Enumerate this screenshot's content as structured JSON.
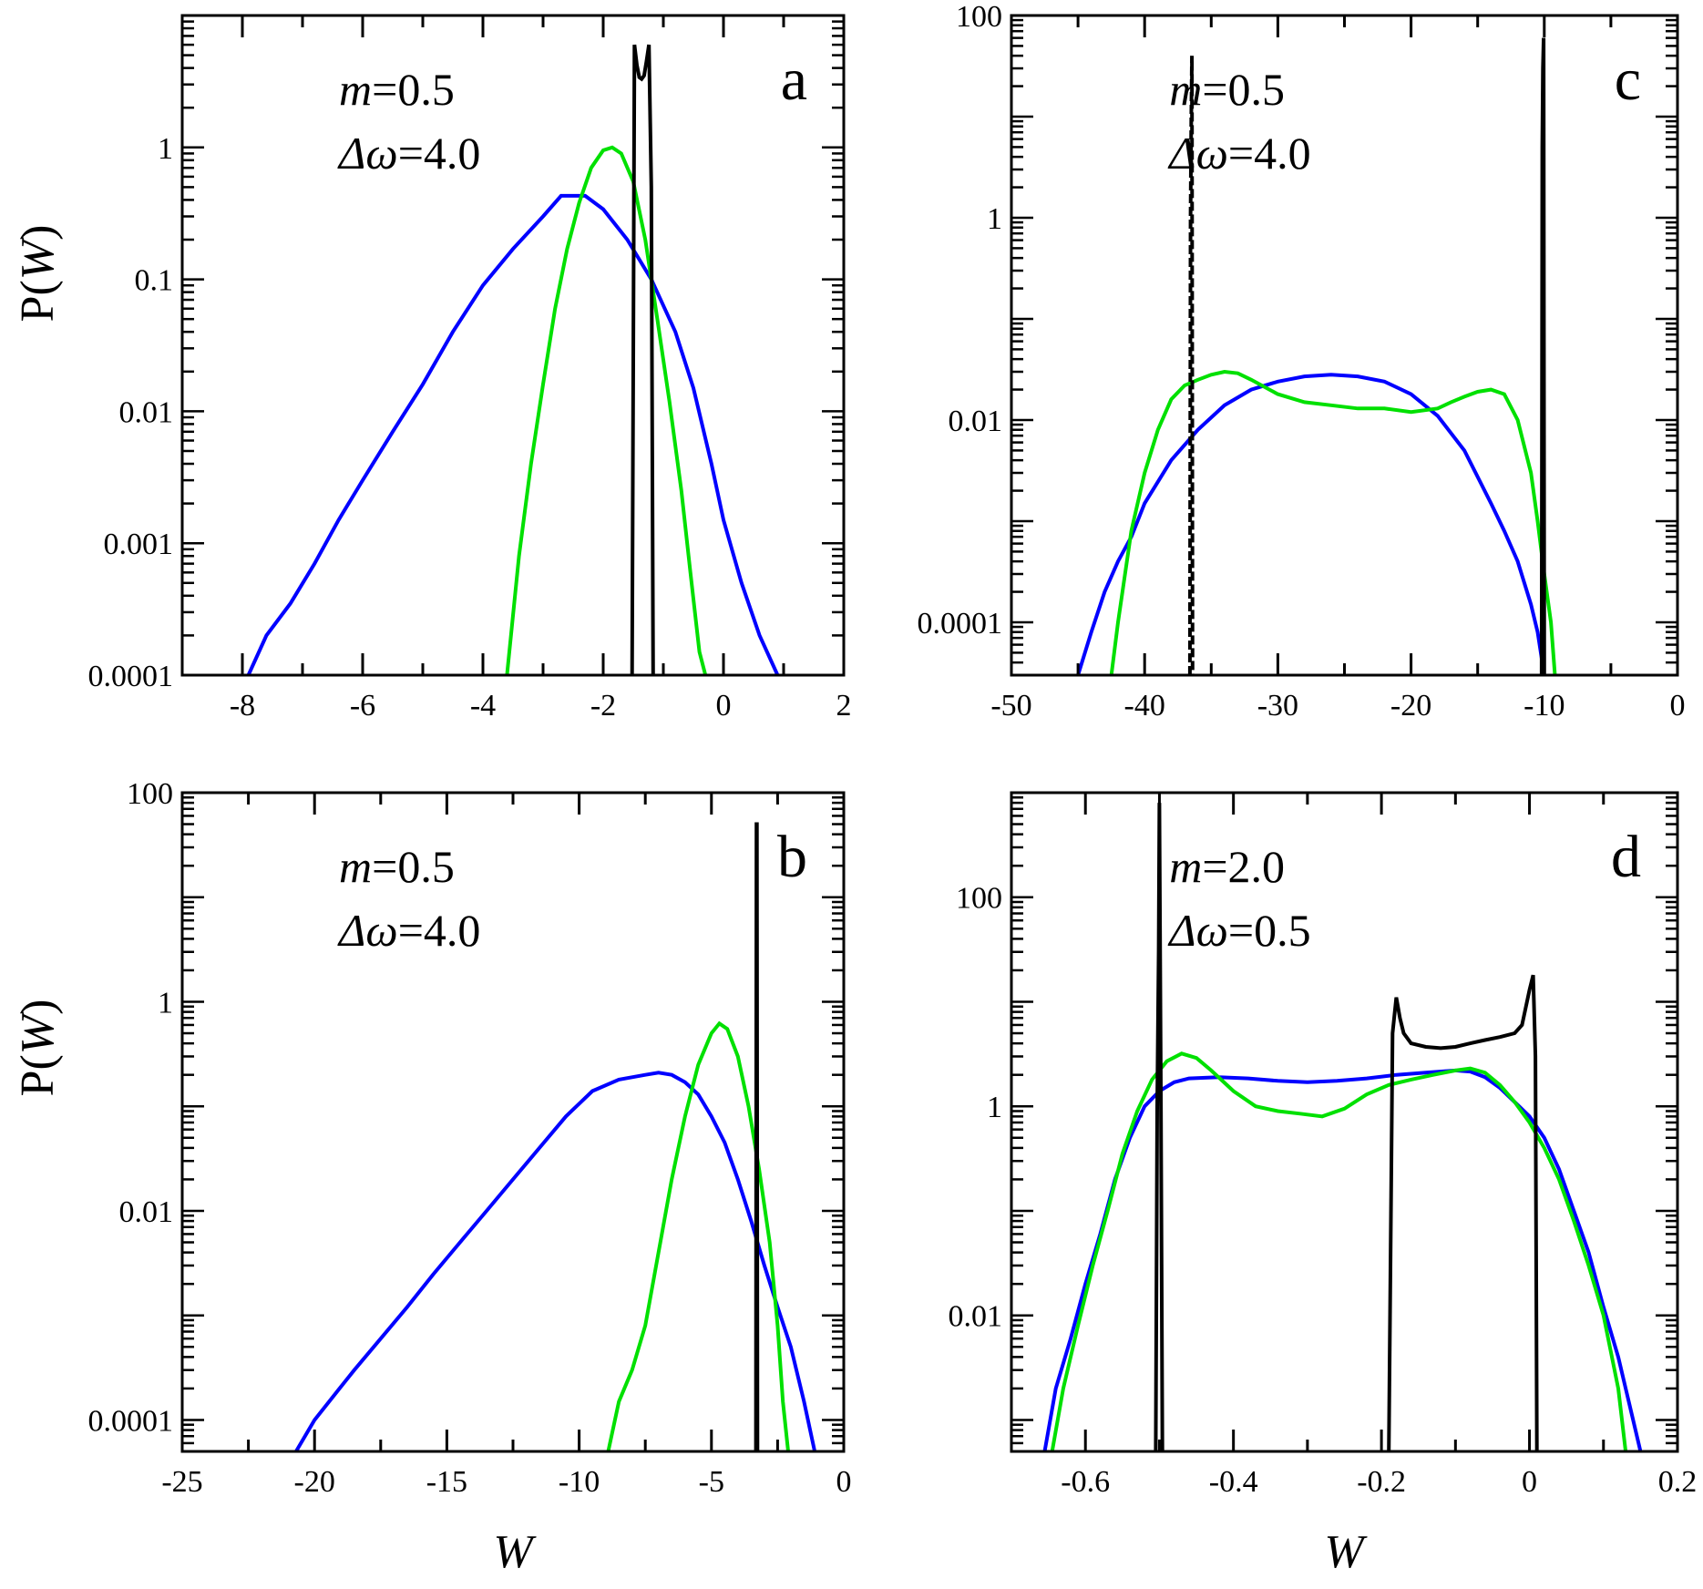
{
  "figure": {
    "ylabel_prefix": "P(",
    "ylabel_var": "W",
    "ylabel_suffix": ")",
    "xlabel": "W"
  },
  "colors": {
    "blue": "#0000ff",
    "green": "#00e000",
    "black": "#000000"
  },
  "chart_data": [
    {
      "id": "a",
      "type": "line",
      "letter": "a",
      "annotation": {
        "m_label": "m",
        "m_value": "=0.5",
        "dw_label": "Δω",
        "dw_value": "=4.0"
      },
      "xscale": "linear",
      "yscale": "log",
      "xlim": [
        -9,
        2
      ],
      "ylim": [
        0.0001,
        10
      ],
      "xticks": [
        -8,
        -6,
        -4,
        -2,
        0,
        2
      ],
      "xtick_labels": [
        "-8",
        "-6",
        "-4",
        "-2",
        "0",
        "2"
      ],
      "yticks": [
        0.0001,
        0.001,
        0.01,
        0.1,
        1
      ],
      "ytick_labels": [
        "0.0001",
        "0.001",
        "0.01",
        "0.1",
        "1"
      ],
      "series": [
        {
          "name": "blue",
          "color": "blue",
          "dashed": false,
          "x": [
            -7.9,
            -7.6,
            -7.2,
            -6.8,
            -6.4,
            -6,
            -5.5,
            -5,
            -4.5,
            -4,
            -3.5,
            -3,
            -2.7,
            -2.3,
            -2,
            -1.6,
            -1.2,
            -0.8,
            -0.5,
            -0.2,
            0,
            0.3,
            0.6,
            0.9
          ],
          "y": [
            0.0001,
            0.0002,
            0.00035,
            0.0007,
            0.0015,
            0.003,
            0.007,
            0.016,
            0.04,
            0.09,
            0.17,
            0.3,
            0.43,
            0.43,
            0.34,
            0.2,
            0.1,
            0.04,
            0.015,
            0.004,
            0.0015,
            0.0005,
            0.0002,
            0.0001
          ]
        },
        {
          "name": "green",
          "color": "green",
          "dashed": false,
          "x": [
            -3.6,
            -3.4,
            -3.2,
            -3,
            -2.8,
            -2.6,
            -2.4,
            -2.2,
            -2,
            -1.85,
            -1.7,
            -1.5,
            -1.3,
            -1.1,
            -0.9,
            -0.7,
            -0.55,
            -0.4,
            -0.3
          ],
          "y": [
            0.0001,
            0.0008,
            0.004,
            0.016,
            0.06,
            0.17,
            0.38,
            0.7,
            0.95,
            1.0,
            0.9,
            0.55,
            0.2,
            0.05,
            0.012,
            0.0025,
            0.0006,
            0.00015,
            0.0001
          ]
        },
        {
          "name": "black",
          "color": "black",
          "dashed": false,
          "x": [
            -1.52,
            -1.48,
            -1.44,
            -1.4,
            -1.36,
            -1.32,
            -1.28,
            -1.24,
            -1.2,
            -1.17
          ],
          "y": [
            0.0001,
            6.0,
            4.2,
            3.4,
            3.3,
            3.5,
            4.5,
            6.0,
            0.5,
            0.0001
          ]
        }
      ]
    },
    {
      "id": "c",
      "type": "line",
      "letter": "c",
      "annotation": {
        "m_label": "m",
        "m_value": "=0.5",
        "dw_label": "Δω",
        "dw_value": "=4.0"
      },
      "xscale": "linear",
      "yscale": "log",
      "xlim": [
        -50,
        0
      ],
      "ylim": [
        3e-05,
        100
      ],
      "xticks": [
        -50,
        -40,
        -30,
        -20,
        -10,
        0
      ],
      "xtick_labels": [
        "-50",
        "-40",
        "-30",
        "-20",
        "-10",
        "0"
      ],
      "yticks": [
        0.0001,
        0.01,
        1,
        100
      ],
      "ytick_labels": [
        "0.0001",
        "0.01",
        "1",
        "100"
      ],
      "series": [
        {
          "name": "blue",
          "color": "blue",
          "dashed": false,
          "x": [
            -45,
            -44,
            -43,
            -42,
            -41,
            -40,
            -38,
            -36,
            -34,
            -32,
            -30,
            -28,
            -26,
            -24,
            -22,
            -20,
            -18,
            -16,
            -14,
            -13,
            -12,
            -11,
            -10.5,
            -10
          ],
          "y": [
            3e-05,
            8e-05,
            0.0002,
            0.0004,
            0.0007,
            0.0015,
            0.004,
            0.008,
            0.014,
            0.02,
            0.024,
            0.027,
            0.028,
            0.027,
            0.024,
            0.018,
            0.011,
            0.005,
            0.0015,
            0.0008,
            0.0004,
            0.00015,
            8e-05,
            3e-05
          ]
        },
        {
          "name": "green",
          "color": "green",
          "dashed": false,
          "x": [
            -42.5,
            -42,
            -41,
            -40,
            -39,
            -38,
            -37,
            -36,
            -35,
            -34,
            -33,
            -32,
            -30,
            -28,
            -26,
            -24,
            -22,
            -20,
            -18,
            -17,
            -16,
            -15,
            -14,
            -13,
            -12,
            -11,
            -10.5,
            -10,
            -9.5,
            -9.2
          ],
          "y": [
            3e-05,
            0.0001,
            0.0008,
            0.003,
            0.008,
            0.016,
            0.022,
            0.025,
            0.028,
            0.03,
            0.029,
            0.025,
            0.018,
            0.015,
            0.014,
            0.013,
            0.013,
            0.012,
            0.013,
            0.015,
            0.017,
            0.019,
            0.02,
            0.018,
            0.01,
            0.003,
            0.001,
            0.0003,
            0.0001,
            3e-05
          ]
        },
        {
          "name": "black-dashed",
          "color": "black",
          "dashed": true,
          "x": [
            -36.6,
            -36.55,
            -36.5,
            -36.45,
            -36.4
          ],
          "y": [
            3e-05,
            1.0,
            10,
            40,
            3e-05
          ]
        },
        {
          "name": "black",
          "color": "black",
          "dashed": false,
          "x": [
            -10.2,
            -10.15,
            -10.1,
            -10.05,
            -10.0
          ],
          "y": [
            3e-05,
            5,
            30,
            60,
            3e-05
          ]
        }
      ]
    },
    {
      "id": "b",
      "type": "line",
      "letter": "b",
      "annotation": {
        "m_label": "m",
        "m_value": "=0.5",
        "dw_label": "Δω",
        "dw_value": "=4.0"
      },
      "xscale": "linear",
      "yscale": "log",
      "xlim": [
        -25,
        0
      ],
      "ylim": [
        5e-05,
        100
      ],
      "xticks": [
        -25,
        -20,
        -15,
        -10,
        -5,
        0
      ],
      "xtick_labels": [
        "-25",
        "-20",
        "-15",
        "-10",
        "-5",
        "0"
      ],
      "yticks": [
        0.0001,
        0.01,
        1,
        100
      ],
      "ytick_labels": [
        "0.0001",
        "0.01",
        "1",
        "100"
      ],
      "series": [
        {
          "name": "blue",
          "color": "blue",
          "dashed": false,
          "x": [
            -20.7,
            -20,
            -19.2,
            -18.5,
            -17.5,
            -16.5,
            -15.5,
            -14.5,
            -13.5,
            -12.5,
            -11.5,
            -10.5,
            -9.5,
            -8.5,
            -7.5,
            -7,
            -6.5,
            -6,
            -5.5,
            -5,
            -4.5,
            -4,
            -3.5,
            -3,
            -2.5,
            -2,
            -1.5,
            -1.1
          ],
          "y": [
            5e-05,
            0.0001,
            0.00018,
            0.0003,
            0.0006,
            0.0012,
            0.0025,
            0.005,
            0.01,
            0.02,
            0.04,
            0.08,
            0.14,
            0.18,
            0.2,
            0.21,
            0.2,
            0.17,
            0.13,
            0.08,
            0.045,
            0.02,
            0.008,
            0.003,
            0.0012,
            0.0005,
            0.00015,
            5e-05
          ]
        },
        {
          "name": "green",
          "color": "green",
          "dashed": false,
          "x": [
            -8.9,
            -8.5,
            -8,
            -7.5,
            -7,
            -6.5,
            -6,
            -5.5,
            -5,
            -4.7,
            -4.4,
            -4,
            -3.6,
            -3.2,
            -2.8,
            -2.5,
            -2.3,
            -2.1
          ],
          "y": [
            5e-05,
            0.00015,
            0.0003,
            0.0008,
            0.004,
            0.02,
            0.08,
            0.25,
            0.5,
            0.62,
            0.55,
            0.3,
            0.1,
            0.025,
            0.005,
            0.0008,
            0.00015,
            5e-05
          ]
        },
        {
          "name": "black",
          "color": "black",
          "dashed": false,
          "x": [
            -3.32,
            -3.3,
            -3.28,
            -3.26
          ],
          "y": [
            5e-05,
            50,
            50,
            5e-05
          ]
        }
      ]
    },
    {
      "id": "d",
      "type": "line",
      "letter": "d",
      "annotation": {
        "m_label": "m",
        "m_value": "=2.0",
        "dw_label": "Δω",
        "dw_value": "=0.5"
      },
      "xscale": "linear",
      "yscale": "log",
      "xlim": [
        -0.7,
        0.2
      ],
      "ylim": [
        0.0005,
        1000
      ],
      "xticks": [
        -0.6,
        -0.4,
        -0.2,
        0,
        0.2
      ],
      "xtick_labels": [
        "-0.6",
        "-0.4",
        "-0.2",
        "0",
        "0.2"
      ],
      "yticks": [
        0.01,
        1,
        100
      ],
      "ytick_labels": [
        "0.01",
        "1",
        "100"
      ],
      "series": [
        {
          "name": "blue",
          "color": "blue",
          "dashed": false,
          "x": [
            -0.655,
            -0.64,
            -0.62,
            -0.6,
            -0.58,
            -0.56,
            -0.54,
            -0.52,
            -0.5,
            -0.48,
            -0.46,
            -0.42,
            -0.38,
            -0.34,
            -0.3,
            -0.26,
            -0.22,
            -0.18,
            -0.14,
            -0.1,
            -0.08,
            -0.06,
            -0.04,
            -0.02,
            0,
            0.02,
            0.04,
            0.06,
            0.08,
            0.1,
            0.12,
            0.14,
            0.15
          ],
          "y": [
            0.0005,
            0.002,
            0.006,
            0.02,
            0.06,
            0.2,
            0.5,
            1.0,
            1.4,
            1.7,
            1.85,
            1.9,
            1.85,
            1.75,
            1.7,
            1.75,
            1.85,
            2.0,
            2.1,
            2.2,
            2.15,
            1.9,
            1.5,
            1.1,
            0.8,
            0.5,
            0.25,
            0.1,
            0.04,
            0.012,
            0.004,
            0.001,
            0.0005
          ]
        },
        {
          "name": "green",
          "color": "green",
          "dashed": false,
          "x": [
            -0.645,
            -0.63,
            -0.61,
            -0.59,
            -0.57,
            -0.55,
            -0.53,
            -0.51,
            -0.49,
            -0.47,
            -0.45,
            -0.43,
            -0.4,
            -0.37,
            -0.34,
            -0.31,
            -0.28,
            -0.25,
            -0.22,
            -0.19,
            -0.16,
            -0.13,
            -0.1,
            -0.08,
            -0.06,
            -0.04,
            -0.02,
            0,
            0.02,
            0.04,
            0.06,
            0.08,
            0.1,
            0.12,
            0.13
          ],
          "y": [
            0.0005,
            0.002,
            0.008,
            0.03,
            0.1,
            0.35,
            0.9,
            1.8,
            2.7,
            3.2,
            2.9,
            2.2,
            1.4,
            1.0,
            0.9,
            0.85,
            0.8,
            0.95,
            1.3,
            1.6,
            1.8,
            2.0,
            2.2,
            2.3,
            2.1,
            1.6,
            1.1,
            0.7,
            0.4,
            0.2,
            0.08,
            0.03,
            0.01,
            0.002,
            0.0005
          ]
        },
        {
          "name": "black-left",
          "color": "black",
          "dashed": false,
          "x": [
            -0.505,
            -0.503,
            -0.501,
            -0.5,
            -0.498,
            -0.496
          ],
          "y": [
            0.0005,
            1,
            30,
            800,
            1,
            0.0005
          ]
        },
        {
          "name": "black-box",
          "color": "black",
          "dashed": false,
          "x": [
            -0.19,
            -0.185,
            -0.18,
            -0.175,
            -0.17,
            -0.16,
            -0.14,
            -0.12,
            -0.1,
            -0.08,
            -0.06,
            -0.04,
            -0.02,
            -0.01,
            0,
            0.005,
            0.008,
            0.01
          ],
          "y": [
            0.0005,
            5,
            11,
            7,
            5,
            4,
            3.7,
            3.6,
            3.7,
            4.0,
            4.3,
            4.6,
            5.0,
            6.0,
            13,
            18,
            3,
            0.0005
          ]
        }
      ]
    }
  ]
}
